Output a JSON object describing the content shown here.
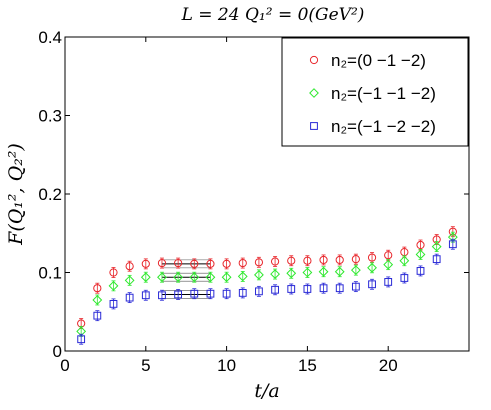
{
  "chart_data": {
    "type": "scatter",
    "title": "L = 24   Q₁² = 0(GeV²)",
    "xlabel": "t/a",
    "ylabel": "F(Q₁², Q₂²)",
    "xlim": [
      0,
      25
    ],
    "ylim": [
      0,
      0.4
    ],
    "xticks": [
      "0",
      "5",
      "10",
      "15",
      "20"
    ],
    "yticks": [
      "0",
      "0.1",
      "0.2",
      "0.3",
      "0.4"
    ],
    "grid": false,
    "legend_position": "top-right",
    "series": [
      {
        "name": "n₂=(0 −1 −2)",
        "marker": "circle",
        "color": "#e8262b",
        "x": [
          1,
          2,
          3,
          4,
          5,
          6,
          7,
          8,
          9,
          10,
          11,
          12,
          13,
          14,
          15,
          16,
          17,
          18,
          19,
          20,
          21,
          22,
          23,
          24
        ],
        "y": [
          0.035,
          0.08,
          0.1,
          0.108,
          0.111,
          0.112,
          0.112,
          0.111,
          0.111,
          0.111,
          0.112,
          0.113,
          0.114,
          0.115,
          0.115,
          0.116,
          0.116,
          0.117,
          0.119,
          0.122,
          0.126,
          0.135,
          0.142,
          0.152
        ],
        "fit": {
          "x": [
            6,
            9
          ],
          "y": 0.111
        }
      },
      {
        "name": "n₂=(−1 −1 −2)",
        "marker": "diamond",
        "color": "#2ee82e",
        "x": [
          1,
          2,
          3,
          4,
          5,
          6,
          7,
          8,
          9,
          10,
          11,
          12,
          13,
          14,
          15,
          16,
          17,
          18,
          19,
          20,
          21,
          22,
          23,
          24
        ],
        "y": [
          0.025,
          0.065,
          0.083,
          0.09,
          0.094,
          0.094,
          0.094,
          0.094,
          0.094,
          0.094,
          0.095,
          0.097,
          0.098,
          0.099,
          0.1,
          0.101,
          0.101,
          0.103,
          0.106,
          0.11,
          0.115,
          0.123,
          0.133,
          0.145
        ],
        "fit": {
          "x": [
            6,
            9
          ],
          "y": 0.094
        }
      },
      {
        "name": "n₂=(−1 −2 −2)",
        "marker": "square",
        "color": "#2929d6",
        "x": [
          1,
          2,
          3,
          4,
          5,
          6,
          7,
          8,
          9,
          10,
          11,
          12,
          13,
          14,
          15,
          16,
          17,
          18,
          19,
          20,
          21,
          22,
          23,
          24
        ],
        "y": [
          0.015,
          0.045,
          0.06,
          0.068,
          0.071,
          0.071,
          0.072,
          0.073,
          0.073,
          0.073,
          0.074,
          0.076,
          0.078,
          0.079,
          0.079,
          0.08,
          0.08,
          0.082,
          0.085,
          0.088,
          0.093,
          0.102,
          0.117,
          0.136
        ],
        "fit": {
          "x": [
            6,
            9
          ],
          "y": 0.072
        }
      }
    ]
  }
}
